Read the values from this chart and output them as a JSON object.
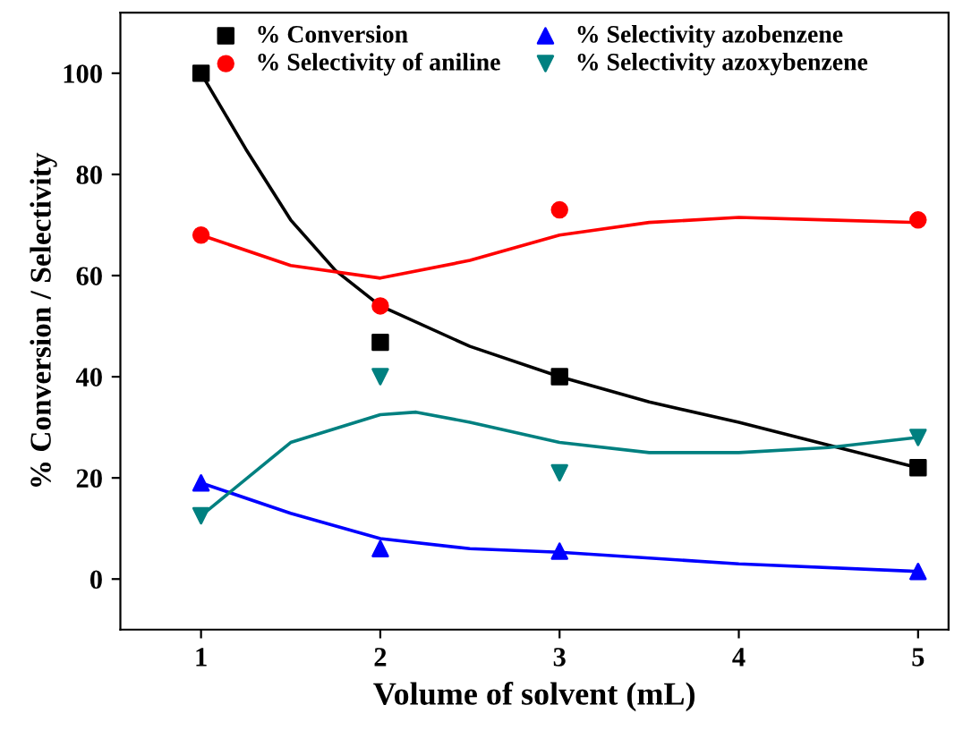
{
  "chart_data": {
    "type": "scatter",
    "xlabel": "Volume of solvent (mL)",
    "ylabel": "% Conversion / Selectivity",
    "xlim": [
      0.55,
      5.17
    ],
    "xticks": [
      1,
      2,
      3,
      4,
      5
    ],
    "ylim": [
      -10,
      112
    ],
    "yticks": [
      0,
      20,
      40,
      60,
      80,
      100
    ],
    "grid": false,
    "legend": "top",
    "series": [
      {
        "name": "% Conversion",
        "color": "#000000",
        "marker": "square",
        "x": [
          1,
          2,
          3,
          5
        ],
        "values": [
          100,
          46.8,
          40,
          22
        ]
      },
      {
        "name": "% Selectivity of aniline",
        "color": "#ff0000",
        "marker": "circle",
        "x": [
          1,
          2,
          3,
          5
        ],
        "values": [
          68,
          54,
          73,
          71
        ]
      },
      {
        "name": "% Selectivity azobenzene",
        "color": "#0000ff",
        "marker": "triangle",
        "x": [
          1,
          2,
          3,
          5
        ],
        "values": [
          19,
          6,
          5.5,
          1.5
        ]
      },
      {
        "name": "% Selectivity azoxybenzene",
        "color": "#008080",
        "marker": "triangle_down",
        "x": [
          1,
          2,
          3,
          5
        ],
        "values": [
          12.5,
          40,
          21,
          28
        ]
      },
      {
        "type": "line",
        "color": "#000000",
        "marker": "none",
        "line_style": "solid",
        "x": [
          1,
          1.25,
          1.5,
          1.75,
          2,
          2.5,
          3,
          3.5,
          4,
          4.5,
          5
        ],
        "values": [
          100,
          85,
          71,
          61,
          54,
          46,
          40,
          35,
          31,
          26.5,
          22
        ]
      },
      {
        "type": "line",
        "color": "#ff0000",
        "marker": "none",
        "line_style": "solid",
        "x": [
          1,
          1.5,
          2,
          2.5,
          3,
          3.5,
          4,
          4.5,
          5
        ],
        "values": [
          68,
          62,
          59.5,
          63,
          68,
          70.5,
          71.5,
          71,
          70.5
        ]
      },
      {
        "type": "line",
        "color": "#0000ff",
        "marker": "none",
        "line_style": "solid",
        "x": [
          1,
          1.5,
          2,
          2.5,
          3,
          4,
          5
        ],
        "values": [
          19,
          13,
          8,
          6,
          5.3,
          3,
          1.5
        ]
      },
      {
        "type": "line",
        "color": "#008080",
        "marker": "none",
        "line_style": "solid",
        "x": [
          1,
          1.5,
          2,
          2.2,
          2.5,
          3,
          3.5,
          4,
          4.5,
          5
        ],
        "values": [
          12.5,
          27,
          32.5,
          33,
          31,
          27,
          25,
          25,
          26,
          28
        ]
      }
    ]
  }
}
